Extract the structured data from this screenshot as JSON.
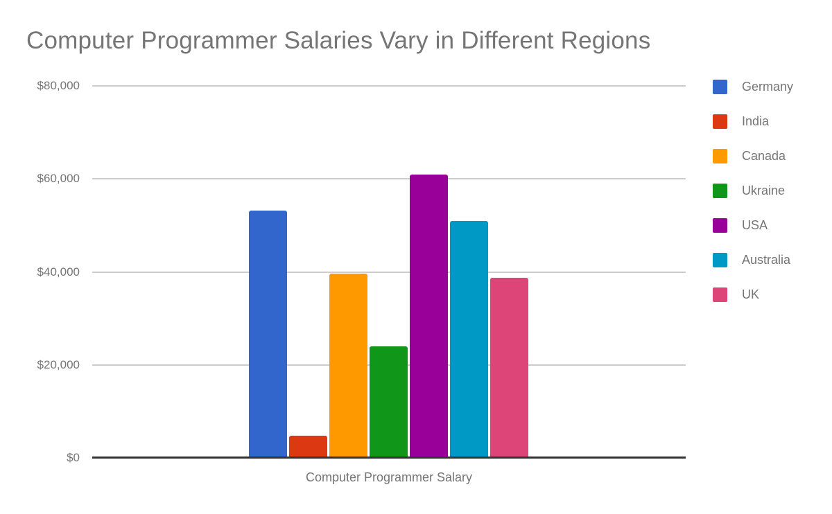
{
  "title": "Computer Programmer Salaries Vary in Different Regions",
  "chart_data": {
    "type": "bar",
    "title": "Computer Programmer Salaries Vary in Different Regions",
    "xlabel": "Computer Programmer Salary",
    "ylabel": "",
    "categories": [
      "Computer Programmer Salary"
    ],
    "series": [
      {
        "name": "Germany",
        "color": "#3366CC",
        "values": [
          53250
        ]
      },
      {
        "name": "India",
        "color": "#DC3912",
        "values": [
          4800
        ]
      },
      {
        "name": "Canada",
        "color": "#FF9900",
        "values": [
          39600
        ]
      },
      {
        "name": "Ukraine",
        "color": "#109618",
        "values": [
          24000
        ]
      },
      {
        "name": "USA",
        "color": "#990099",
        "values": [
          61000
        ]
      },
      {
        "name": "Australia",
        "color": "#0099C6",
        "values": [
          51000
        ]
      },
      {
        "name": "UK",
        "color": "#DD4477",
        "values": [
          38700
        ]
      }
    ],
    "ylim": [
      0,
      80000
    ],
    "yticks": [
      {
        "value": 0,
        "label": "$0"
      },
      {
        "value": 20000,
        "label": "$20,000"
      },
      {
        "value": 40000,
        "label": "$40,000"
      },
      {
        "value": 60000,
        "label": "$60,000"
      },
      {
        "value": 80000,
        "label": "$80,000"
      }
    ],
    "grid": true,
    "legend_position": "right",
    "colors": {
      "title_text": "#757575",
      "axis_text": "#757575",
      "gridline": "#CCCCCC",
      "axis_line": "#333333",
      "background": "#FFFFFF"
    }
  }
}
